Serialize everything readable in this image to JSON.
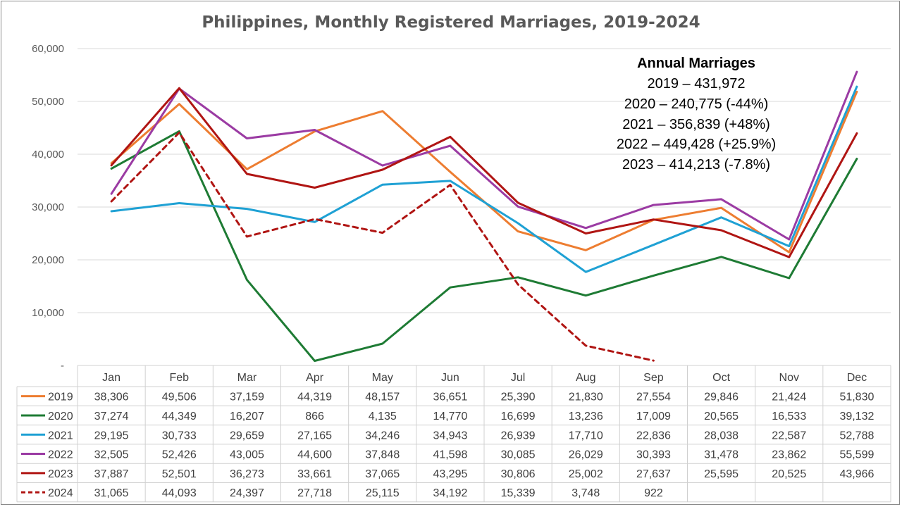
{
  "chart_data": {
    "type": "line",
    "title": "Philippines, Monthly Registered Marriages, 2019-2024",
    "categories": [
      "Jan",
      "Feb",
      "Mar",
      "Apr",
      "May",
      "Jun",
      "Jul",
      "Aug",
      "Sep",
      "Oct",
      "Nov",
      "Dec"
    ],
    "ylim": [
      0,
      60000
    ],
    "y_ticks": [
      {
        "value": 0,
        "label": "-"
      },
      {
        "value": 10000,
        "label": "10,000"
      },
      {
        "value": 20000,
        "label": "20,000"
      },
      {
        "value": 30000,
        "label": "30,000"
      },
      {
        "value": 40000,
        "label": "40,000"
      },
      {
        "value": 50000,
        "label": "50,000"
      },
      {
        "value": 60000,
        "label": "60,000"
      }
    ],
    "grid": true,
    "legend": "data-table",
    "series": [
      {
        "name": "2019",
        "color": "#ED7D31",
        "dashed": false,
        "values": [
          38306,
          49506,
          37159,
          44319,
          48157,
          36651,
          25390,
          21830,
          27554,
          29846,
          21424,
          51830
        ],
        "labels": [
          "38,306",
          "49,506",
          "37,159",
          "44,319",
          "48,157",
          "36,651",
          "25,390",
          "21,830",
          "27,554",
          "29,846",
          "21,424",
          "51,830"
        ]
      },
      {
        "name": "2020",
        "color": "#1E7B34",
        "dashed": false,
        "values": [
          37274,
          44349,
          16207,
          866,
          4135,
          14770,
          16699,
          13236,
          17009,
          20565,
          16533,
          39132
        ],
        "labels": [
          "37,274",
          "44,349",
          "16,207",
          "866",
          "4,135",
          "14,770",
          "16,699",
          "13,236",
          "17,009",
          "20,565",
          "16,533",
          "39,132"
        ]
      },
      {
        "name": "2021",
        "color": "#1FA1D4",
        "dashed": false,
        "values": [
          29195,
          30733,
          29659,
          27165,
          34246,
          34943,
          26939,
          17710,
          22836,
          28038,
          22587,
          52788
        ],
        "labels": [
          "29,195",
          "30,733",
          "29,659",
          "27,165",
          "34,246",
          "34,943",
          "26,939",
          "17,710",
          "22,836",
          "28,038",
          "22,587",
          "52,788"
        ]
      },
      {
        "name": "2022",
        "color": "#9B3BA3",
        "dashed": false,
        "values": [
          32505,
          52426,
          43005,
          44600,
          37848,
          41598,
          30085,
          26029,
          30393,
          31478,
          23862,
          55599
        ],
        "labels": [
          "32,505",
          "52,426",
          "43,005",
          "44,600",
          "37,848",
          "41,598",
          "30,085",
          "26,029",
          "30,393",
          "31,478",
          "23,862",
          "55,599"
        ]
      },
      {
        "name": "2023",
        "color": "#B01513",
        "dashed": false,
        "values": [
          37887,
          52501,
          36273,
          33661,
          37065,
          43295,
          30806,
          25002,
          27637,
          25595,
          20525,
          43966
        ],
        "labels": [
          "37,887",
          "52,501",
          "36,273",
          "33,661",
          "37,065",
          "43,295",
          "30,806",
          "25,002",
          "27,637",
          "25,595",
          "20,525",
          "43,966"
        ]
      },
      {
        "name": "2024",
        "color": "#B01513",
        "dashed": true,
        "values": [
          31065,
          44093,
          24397,
          27718,
          25115,
          34192,
          15339,
          3748,
          922,
          null,
          null,
          null
        ],
        "labels": [
          "31,065",
          "44,093",
          "24,397",
          "27,718",
          "25,115",
          "34,192",
          "15,339",
          "3,748",
          "922",
          "",
          "",
          ""
        ]
      }
    ],
    "annotation": {
      "title": "Annual Marriages",
      "lines": [
        "2019 – 431,972",
        "2020 – 240,775 (-44%)",
        "2021 – 356,839 (+48%)",
        "2022 – 449,428 (+25.9%)",
        "2023 – 414,213 (-7.8%)"
      ]
    }
  }
}
